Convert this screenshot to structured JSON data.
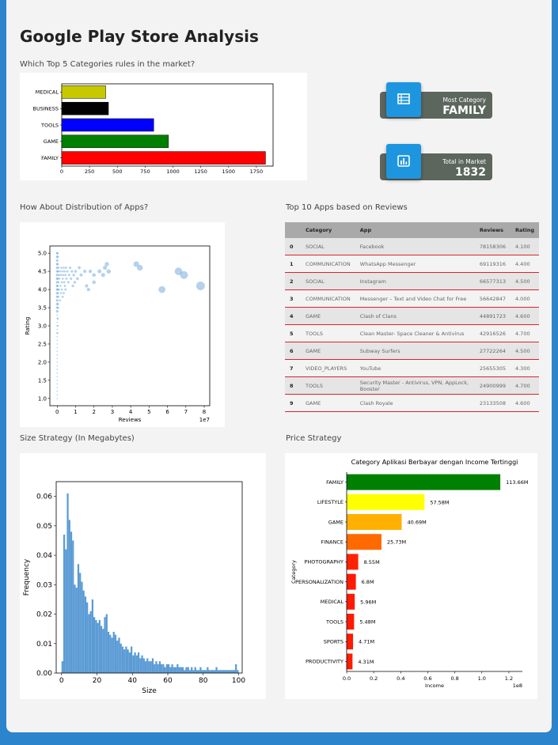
{
  "page": {
    "title": "Google Play Store Analysis"
  },
  "sections": {
    "top5": "Which Top 5 Categories rules in the market?",
    "distribution": "How About Distribution of Apps?",
    "top10": "Top 10 Apps based on Reviews",
    "size": "Size Strategy (In Megabytes)",
    "price": "Price Strategy"
  },
  "kpis": [
    {
      "label": "Most Category",
      "value": "FAMILY",
      "icon": "table-icon",
      "accent": "#1e96df"
    },
    {
      "label": "Total in Market",
      "value": "1832",
      "icon": "bar-chart-icon",
      "accent": "#1e96df"
    }
  ],
  "table": {
    "columns": [
      "",
      "Category",
      "App",
      "Reviews",
      "Rating"
    ],
    "rows": [
      [
        "0",
        "SOCIAL",
        "Facebook",
        "78158306",
        "4.100"
      ],
      [
        "1",
        "COMMUNICATION",
        "WhatsApp Messenger",
        "69119316",
        "4.400"
      ],
      [
        "2",
        "SOCIAL",
        "Instagram",
        "66577313",
        "4.500"
      ],
      [
        "3",
        "COMMUNICATION",
        "Messenger – Text and Video Chat for Free",
        "56642847",
        "4.000"
      ],
      [
        "4",
        "GAME",
        "Clash of Clans",
        "44891723",
        "4.600"
      ],
      [
        "5",
        "TOOLS",
        "Clean Master- Space Cleaner & Antivirus",
        "42916526",
        "4.700"
      ],
      [
        "6",
        "GAME",
        "Subway Surfers",
        "27722264",
        "4.500"
      ],
      [
        "7",
        "VIDEO_PLAYERS",
        "YouTube",
        "25655305",
        "4.300"
      ],
      [
        "8",
        "TOOLS",
        "Security Master - Antivirus, VPN, AppLock, Booster",
        "24900999",
        "4.700"
      ],
      [
        "9",
        "GAME",
        "Clash Royale",
        "23133508",
        "4.600"
      ]
    ]
  },
  "chart_data": [
    {
      "type": "bar",
      "orientation": "horizontal",
      "categories": [
        "FAMILY",
        "GAME",
        "TOOLS",
        "BUSINESS",
        "MEDICAL"
      ],
      "values": [
        1832,
        959,
        827,
        420,
        395
      ],
      "colors": [
        "#ff0000",
        "#008000",
        "#0000ff",
        "#000000",
        "#c8c800"
      ],
      "xlim": [
        0,
        1900
      ],
      "xticks": [
        0,
        250,
        500,
        750,
        1000,
        1250,
        1500,
        1750
      ]
    },
    {
      "type": "scatter",
      "xlabel": "Reviews",
      "ylabel": "Rating",
      "x_multiplier": "1e7",
      "xlim": [
        -0.4,
        8.3
      ],
      "ylim": [
        0.8,
        5.2
      ],
      "xticks": [
        0,
        1,
        2,
        3,
        4,
        5,
        6,
        7,
        8
      ],
      "yticks": [
        1.0,
        1.5,
        2.0,
        2.5,
        3.0,
        3.5,
        4.0,
        4.5,
        5.0
      ],
      "color": "#5b9bd5",
      "points": [
        [
          0.02,
          4.1
        ],
        [
          0.03,
          4.3
        ],
        [
          0.05,
          4.5
        ],
        [
          0.04,
          4.0
        ],
        [
          0.06,
          3.8
        ],
        [
          0.08,
          4.2
        ],
        [
          0.1,
          4.4
        ],
        [
          0.02,
          4.7
        ],
        [
          0.03,
          4.9
        ],
        [
          0.01,
          5.0
        ],
        [
          0.05,
          3.5
        ],
        [
          0.03,
          3.2
        ],
        [
          0.02,
          3.0
        ],
        [
          0.01,
          2.8
        ],
        [
          0.04,
          3.9
        ],
        [
          0.07,
          4.6
        ],
        [
          0.12,
          4.3
        ],
        [
          0.15,
          4.5
        ],
        [
          0.18,
          4.1
        ],
        [
          0.2,
          4.4
        ],
        [
          0.22,
          4.6
        ],
        [
          0.25,
          4.2
        ],
        [
          0.28,
          4.5
        ],
        [
          0.3,
          4.3
        ],
        [
          0.32,
          4.4
        ],
        [
          0.35,
          4.6
        ],
        [
          0.38,
          4.2
        ],
        [
          0.4,
          4.5
        ],
        [
          0.42,
          4.1
        ],
        [
          0.45,
          4.4
        ],
        [
          0.48,
          4.6
        ],
        [
          0.5,
          4.3
        ],
        [
          0.55,
          4.5
        ],
        [
          0.6,
          4.2
        ],
        [
          0.65,
          4.4
        ],
        [
          0.7,
          4.6
        ],
        [
          0.75,
          4.3
        ],
        [
          0.8,
          4.5
        ],
        [
          0.85,
          4.1
        ],
        [
          0.9,
          4.4
        ],
        [
          0.95,
          4.2
        ],
        [
          1.0,
          4.5
        ],
        [
          1.1,
          4.3
        ],
        [
          1.2,
          4.6
        ],
        [
          1.3,
          4.4
        ],
        [
          1.5,
          4.5
        ],
        [
          1.6,
          4.1
        ],
        [
          1.8,
          4.5
        ],
        [
          2.0,
          4.2
        ],
        [
          2.3,
          4.5
        ],
        [
          2.5,
          4.4
        ],
        [
          2.6,
          4.6
        ],
        [
          2.7,
          4.7
        ],
        [
          2.8,
          4.5
        ],
        [
          0.1,
          4.0
        ],
        [
          0.2,
          3.9
        ],
        [
          0.3,
          3.8
        ],
        [
          0.15,
          3.7
        ],
        [
          0.05,
          3.6
        ],
        [
          0.25,
          4.0
        ],
        [
          0.35,
          3.9
        ],
        [
          0.45,
          4.0
        ],
        [
          1.7,
          4.0
        ],
        [
          2.0,
          4.4
        ],
        [
          4.3,
          4.7
        ],
        [
          4.5,
          4.6
        ],
        [
          5.7,
          4.0
        ],
        [
          6.6,
          4.5
        ],
        [
          6.9,
          4.4
        ],
        [
          7.8,
          4.1
        ]
      ]
    },
    {
      "type": "bar",
      "subtype": "histogram",
      "xlabel": "Size",
      "ylabel": "Frequency",
      "xlim": [
        -3,
        102
      ],
      "ylim": [
        0,
        0.065
      ],
      "xticks": [
        0,
        20,
        40,
        60,
        80,
        100
      ],
      "yticks": [
        0.0,
        0.01,
        0.02,
        0.03,
        0.04,
        0.05,
        0.06
      ],
      "color": "#5b9bd5",
      "bin_start": 0,
      "bin_width": 1,
      "values": [
        0.004,
        0.047,
        0.042,
        0.061,
        0.052,
        0.048,
        0.045,
        0.03,
        0.029,
        0.037,
        0.034,
        0.031,
        0.028,
        0.026,
        0.024,
        0.02,
        0.021,
        0.025,
        0.019,
        0.018,
        0.017,
        0.018,
        0.016,
        0.015,
        0.019,
        0.02,
        0.014,
        0.013,
        0.012,
        0.014,
        0.013,
        0.011,
        0.012,
        0.01,
        0.009,
        0.008,
        0.009,
        0.008,
        0.007,
        0.009,
        0.006,
        0.007,
        0.006,
        0.007,
        0.005,
        0.006,
        0.005,
        0.004,
        0.005,
        0.004,
        0.004,
        0.005,
        0.003,
        0.004,
        0.003,
        0.004,
        0.003,
        0.003,
        0.002,
        0.003,
        0.003,
        0.002,
        0.003,
        0.002,
        0.002,
        0.003,
        0.002,
        0.002,
        0.002,
        0.001,
        0.002,
        0.002,
        0.001,
        0.002,
        0.001,
        0.002,
        0.001,
        0.001,
        0.002,
        0.001,
        0.001,
        0.001,
        0.002,
        0.001,
        0.001,
        0.001,
        0.001,
        0.002,
        0.001,
        0.001,
        0.001,
        0.001,
        0.001,
        0.001,
        0.001,
        0.001,
        0.001,
        0.001,
        0.003,
        0.001
      ]
    },
    {
      "type": "bar",
      "orientation": "horizontal",
      "title": "Category Aplikasi Berbayar dengan Income Tertinggi",
      "xlabel": "Income",
      "ylabel": "Category",
      "x_multiplier": "1e8",
      "xlim": [
        0,
        1.3
      ],
      "xticks": [
        0.0,
        0.2,
        0.4,
        0.6,
        0.8,
        1.0,
        1.2
      ],
      "categories": [
        "FAMILY",
        "LIFESTYLE",
        "GAME",
        "FINANCE",
        "PHOTOGRAPHY",
        "PERSONALIZATION",
        "MEDICAL",
        "TOOLS",
        "SPORTS",
        "PRODUCTIVITY"
      ],
      "values": [
        1.1366,
        0.5758,
        0.4069,
        0.2573,
        0.0855,
        0.068,
        0.0596,
        0.0548,
        0.0471,
        0.0431
      ],
      "labels": [
        "113.66M",
        "57.58M",
        "40.69M",
        "25.73M",
        "8.55M",
        "6.8M",
        "5.96M",
        "5.48M",
        "4.71M",
        "4.31M"
      ],
      "colors": [
        "#008000",
        "#ffff00",
        "#ffb000",
        "#ff6a00",
        "#ff2200",
        "#ff1a00",
        "#ff1a00",
        "#ff1a00",
        "#ff1a00",
        "#ff1a00"
      ]
    }
  ]
}
